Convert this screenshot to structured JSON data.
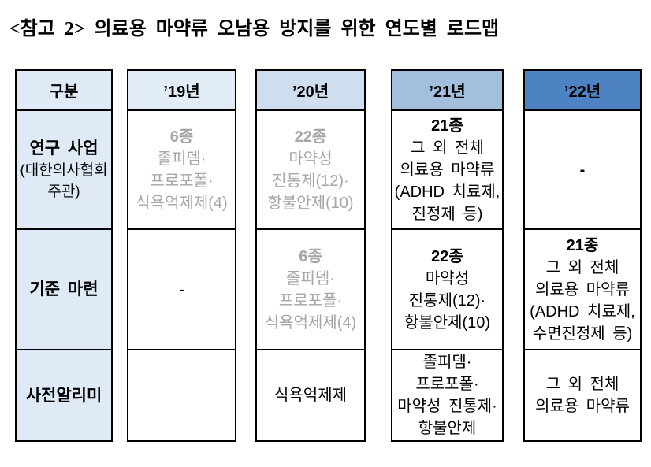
{
  "title": "<참고 2> 의료용 마약류 오남용 방지를 위한 연도별 로드맵",
  "colors": {
    "text": "#000000",
    "border": "#000000",
    "muted_text": "#a6a6a6",
    "category_bg": "#dfeaf6",
    "y19_bg": "#e2ecf7",
    "y20_bg": "#cfdeee",
    "y21_bg": "#a2c0de",
    "y22_bg": "#4d82c3"
  },
  "table": {
    "corner_label": "구분",
    "years": [
      "’19년",
      "’20년",
      "’21년",
      "’22년"
    ],
    "row_headers": [
      {
        "main": "연구 사업",
        "sub1": "(대한의사협회",
        "sub2": "주관)"
      },
      {
        "main": "기준 마련"
      },
      {
        "main": "사전알리미"
      }
    ],
    "cells": {
      "r1y19": {
        "count": "6종",
        "lines": [
          "졸피뎀·",
          "프로포폴·",
          "식욕억제제(4)"
        ]
      },
      "r1y20": {
        "count": "22종",
        "lines": [
          "마약성",
          "진통제(12)·",
          "항불안제(10)"
        ]
      },
      "r1y21": {
        "count": "21종",
        "lines": [
          "그 외 전체",
          "의료용 마약류",
          "(ADHD 치료제,",
          "진정제 등)"
        ]
      },
      "r1y22": {
        "dash": "-"
      },
      "r2y19": {
        "dash": "-"
      },
      "r2y20": {
        "count": "6종",
        "lines": [
          "졸피뎀·",
          "프로포폴·",
          "식욕억제제(4)"
        ]
      },
      "r2y21": {
        "count": "22종",
        "lines": [
          "마약성",
          "진통제(12)·",
          "항불안제(10)"
        ]
      },
      "r2y22": {
        "count": "21종",
        "lines": [
          "그 외 전체",
          "의료용 마약류",
          "(ADHD 치료제,",
          "수면진정제 등)"
        ]
      },
      "r3y20": {
        "lines": [
          "식욕억제제"
        ]
      },
      "r3y21": {
        "lines": [
          "졸피뎀·",
          "프로포폴·",
          "마약성 진통제·",
          "항불안제"
        ]
      },
      "r3y22": {
        "lines": [
          "그 외 전체",
          "의료용 마약류"
        ]
      }
    }
  }
}
